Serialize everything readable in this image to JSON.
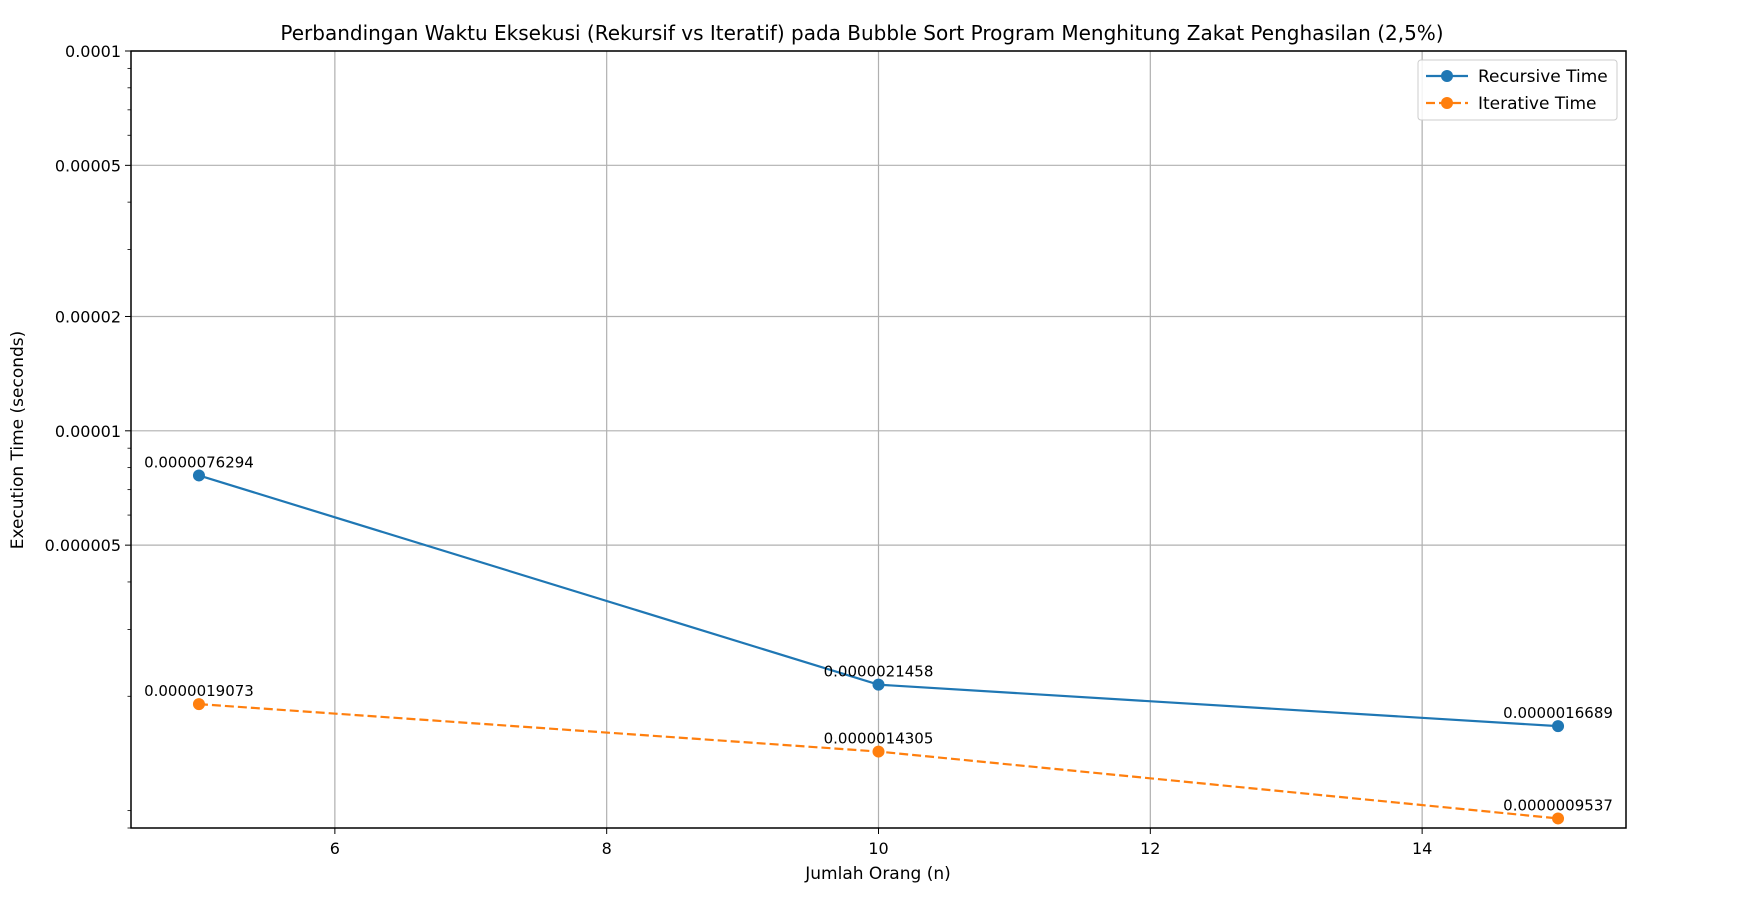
{
  "chart_data": {
    "type": "line",
    "title": "Perbandingan Waktu Eksekusi (Rekursif vs Iteratif) pada Bubble Sort Program Menghitung Zakat Penghasilan (2,5%)",
    "xlabel": "Jumlah Orang (n)",
    "ylabel": "Execution Time (seconds)",
    "x": [
      5,
      10,
      15
    ],
    "xlim": [
      4.5,
      15.5
    ],
    "ylim": [
      9e-07,
      0.0001
    ],
    "yscale": "log",
    "x_ticks": [
      6,
      8,
      10,
      12,
      14
    ],
    "x_tick_labels": [
      "6",
      "8",
      "10",
      "12",
      "14"
    ],
    "y_ticks": [
      5e-06,
      1e-05,
      2e-05,
      5e-05,
      0.0001
    ],
    "y_tick_labels": [
      "0.000005",
      "0.00001",
      "0.00002",
      "0.00005",
      "0.0001"
    ],
    "grid": true,
    "legend_position": "top-right",
    "series": [
      {
        "name": "Recursive Time",
        "values": [
          7.6294e-06,
          2.1458e-06,
          1.6689e-06
        ],
        "labels": [
          "0.0000076294",
          "0.0000021458",
          "0.0000016689"
        ],
        "color": "#1f77b4",
        "dashed": false
      },
      {
        "name": "Iterative Time",
        "values": [
          1.9073e-06,
          1.4305e-06,
          9.537e-07
        ],
        "labels": [
          "0.0000019073",
          "0.0000014305",
          "0.0000009537"
        ],
        "color": "#ff7f0e",
        "dashed": true
      }
    ]
  }
}
